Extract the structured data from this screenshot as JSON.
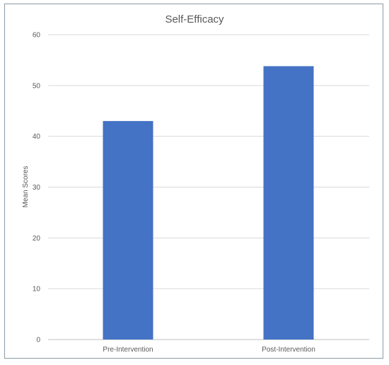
{
  "chart_data": {
    "type": "bar",
    "title": "Self-Efficacy",
    "xlabel": "",
    "ylabel": "Mean Scores",
    "categories": [
      "Pre-Intervention",
      "Post-Intervention"
    ],
    "values": [
      43,
      53.8
    ],
    "ylim": [
      0,
      60
    ],
    "yticks": [
      0,
      10,
      20,
      30,
      40,
      50,
      60
    ],
    "grid": true,
    "legend": "none",
    "bar_color": "#4472C4"
  }
}
